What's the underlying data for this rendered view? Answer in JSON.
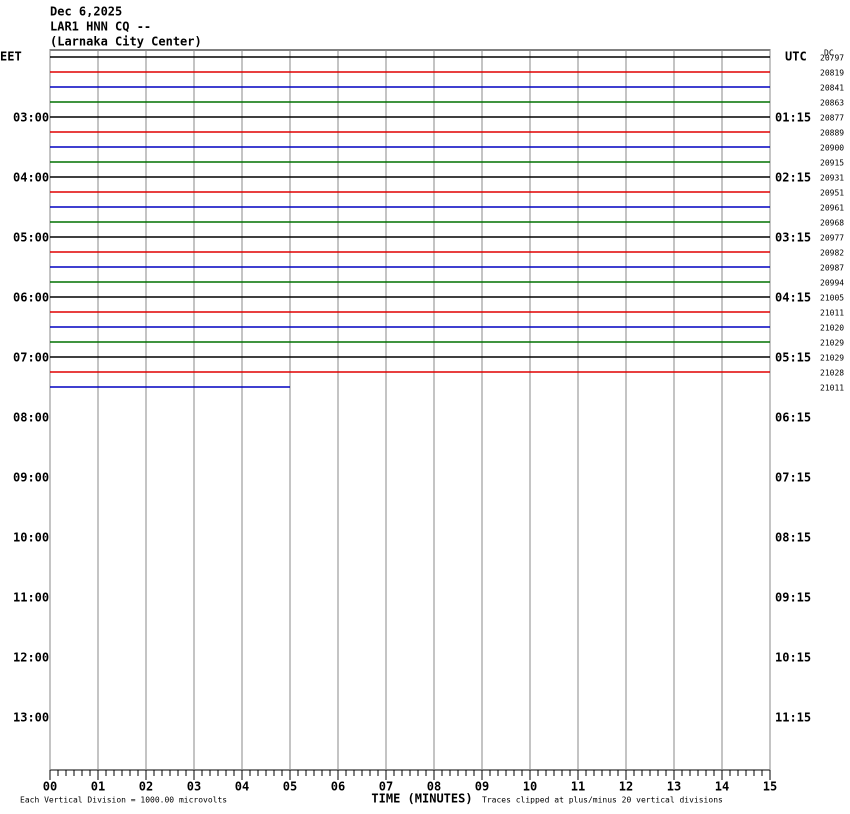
{
  "header": {
    "date": "Dec 6,2025",
    "station": "LAR1 HNN CQ --",
    "location": "(Larnaka City Center)"
  },
  "left_zone": "EET",
  "right_zone": "UTC",
  "dc_header": "DC",
  "left_hours": [
    "03:00",
    "04:00",
    "05:00",
    "06:00",
    "07:00",
    "08:00",
    "09:00",
    "10:00",
    "11:00",
    "12:00",
    "13:00"
  ],
  "right_hours": [
    "01:15",
    "02:15",
    "03:15",
    "04:15",
    "05:15",
    "06:15",
    "07:15",
    "08:15",
    "09:15",
    "10:15",
    "11:15"
  ],
  "trace_colors": [
    "#000000",
    "#e00000",
    "#0000c0",
    "#007000"
  ],
  "traces_dc": [
    20797,
    20819,
    20841,
    20863,
    20877,
    20889,
    20900,
    20915,
    20931,
    20951,
    20961,
    20968,
    20977,
    20982,
    20987,
    20994,
    21005,
    21011,
    21020,
    21029,
    21029,
    21028,
    21011
  ],
  "last_trace_end_minute": 5,
  "xlim": [
    0,
    15
  ],
  "xticks": [
    {
      "value": 0,
      "label": "00"
    },
    {
      "value": 1,
      "label": "01"
    },
    {
      "value": 2,
      "label": "02"
    },
    {
      "value": 3,
      "label": "03"
    },
    {
      "value": 4,
      "label": "04"
    },
    {
      "value": 5,
      "label": "05"
    },
    {
      "value": 6,
      "label": "06"
    },
    {
      "value": 7,
      "label": "07"
    },
    {
      "value": 8,
      "label": "08"
    },
    {
      "value": 9,
      "label": "09"
    },
    10,
    11,
    12,
    13,
    14,
    15
  ],
  "x_label": "TIME (MINUTES)",
  "scale_note": "Each Vertical Division = 1000.00 microvolts",
  "clip_note": "Traces clipped at plus/minus 20 vertical divisions"
}
